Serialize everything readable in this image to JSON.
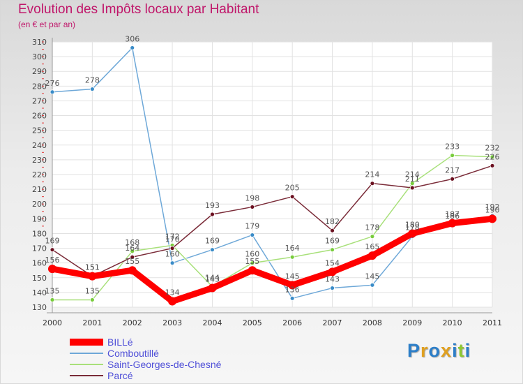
{
  "chart_data": {
    "type": "line",
    "title": "Evolution des Impôts locaux par Habitant",
    "subtitle": "(en € et par an)",
    "xlabel": "",
    "ylabel": "",
    "categories": [
      "2000",
      "2001",
      "2002",
      "2003",
      "2004",
      "2005",
      "2006",
      "2007",
      "2008",
      "2009",
      "2010",
      "2011"
    ],
    "ylim": [
      130,
      310
    ],
    "yticks": [
      130,
      140,
      150,
      160,
      170,
      180,
      190,
      200,
      210,
      220,
      230,
      240,
      250,
      260,
      270,
      280,
      290,
      300,
      310
    ],
    "grid": true,
    "series": [
      {
        "name": "Comboutillé",
        "color": "#6ea8d8",
        "marker": "#3a8cc8",
        "values": [
          276,
          278,
          306,
          160,
          169,
          179,
          136,
          143,
          145,
          178,
          186,
          192
        ]
      },
      {
        "name": "Saint-Georges-de-Chesné",
        "color": "#a8e07a",
        "marker": "#78cc3c",
        "values": [
          135,
          135,
          168,
          172,
          144,
          160,
          164,
          169,
          178,
          214,
          233,
          232
        ]
      },
      {
        "name": "Parcé",
        "color": "#7a2b38",
        "marker": "#6b1020",
        "values": [
          169,
          151,
          164,
          170,
          193,
          198,
          205,
          182,
          214,
          211,
          217,
          226
        ]
      },
      {
        "name": "BILLé",
        "color": "#ff0000",
        "marker": "#ff0000",
        "values": [
          156,
          151,
          155,
          134,
          143,
          155,
          145,
          154,
          165,
          180,
          187,
          190
        ]
      }
    ],
    "legend_order": [
      "BILLé",
      "Comboutillé",
      "Saint-Georges-de-Chesné",
      "Parcé"
    ],
    "legend_position": "bottom-left"
  },
  "logo": {
    "letters": [
      "P",
      "r",
      "o",
      "x",
      "i",
      "t",
      "i"
    ],
    "colors": [
      "#2c7ec8",
      "#e0a020",
      "#2c7ec8",
      "#e0a020",
      "#2c7ec8",
      "#8ec832",
      "#2c7ec8"
    ]
  }
}
